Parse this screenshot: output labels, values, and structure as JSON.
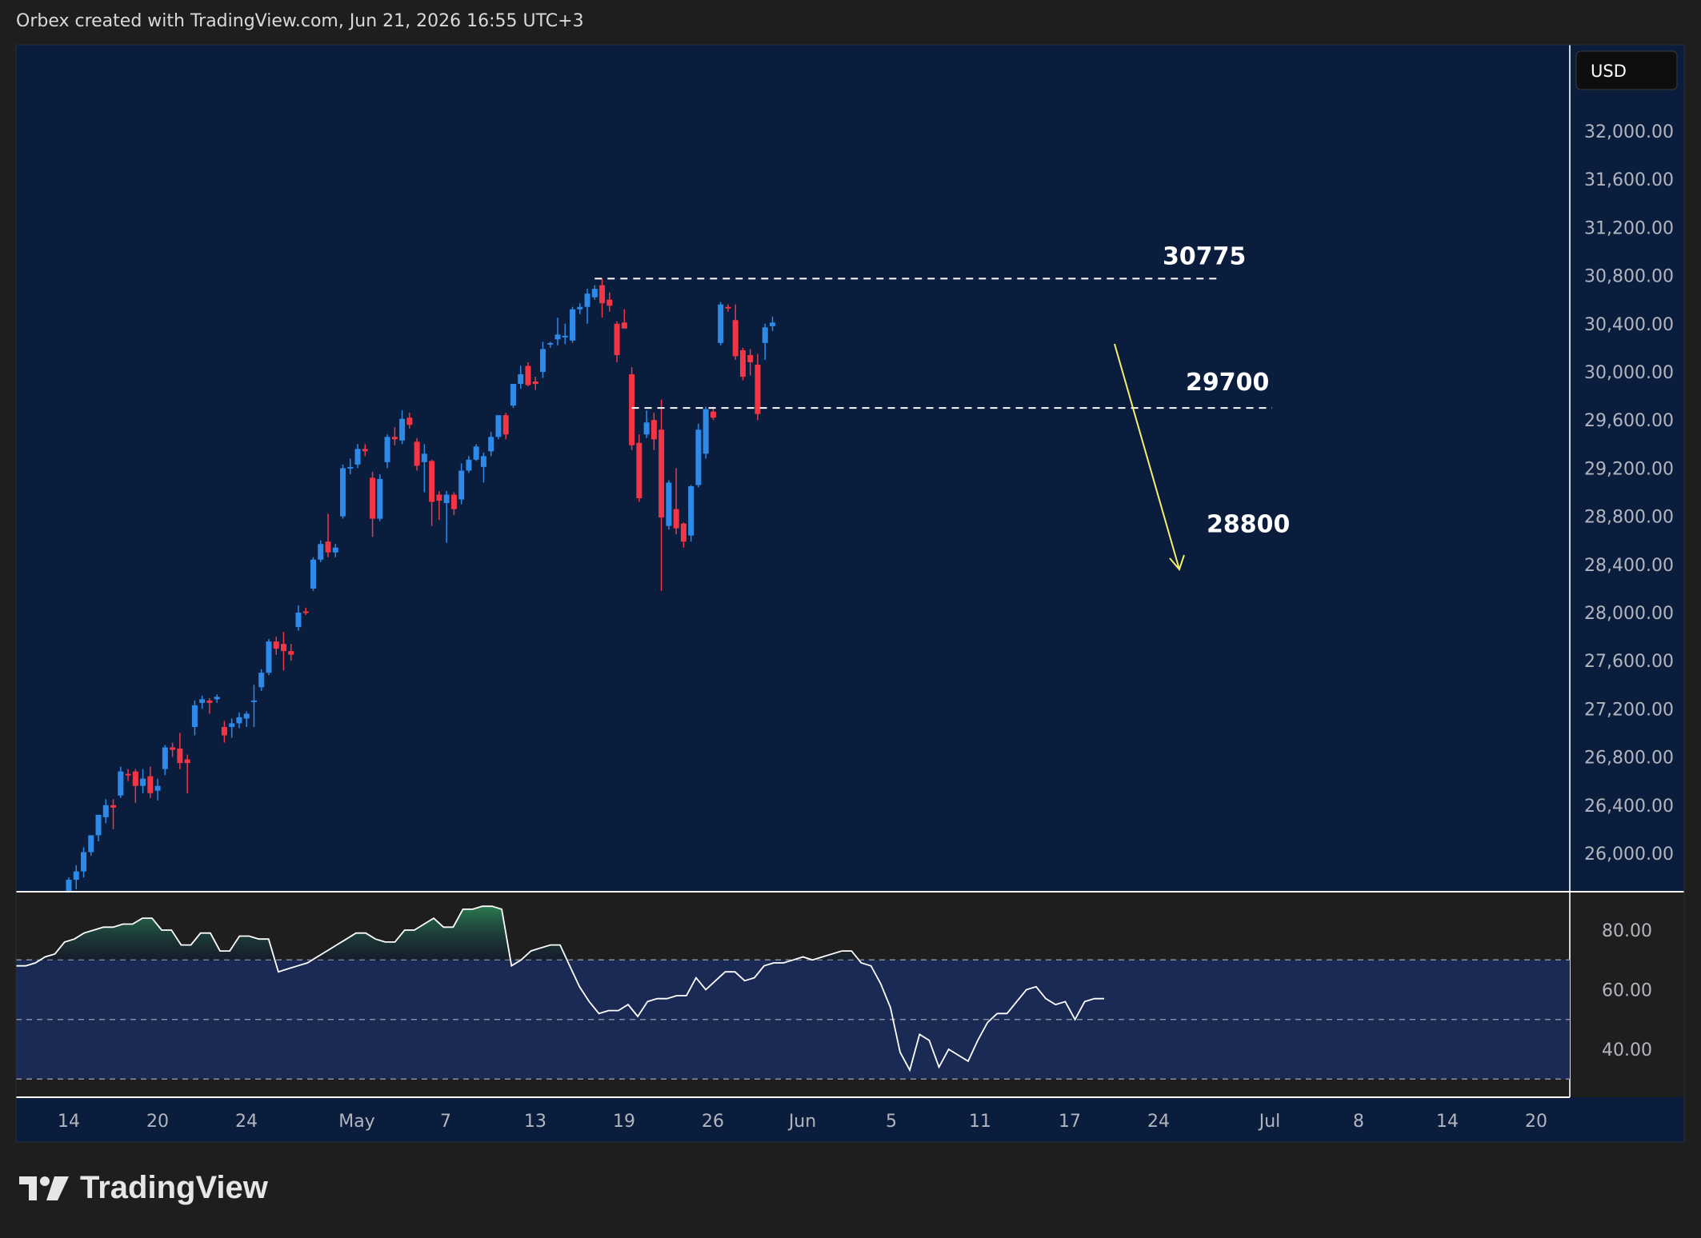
{
  "header": {
    "attribution": "Orbex created with TradingView.com, Jun 21, 2026 16:55 UTC+3"
  },
  "currency_button": {
    "label": "USD"
  },
  "brand": {
    "logo_text": "TradingView"
  },
  "colors": {
    "background": "#1e1e1e",
    "plot_bg": "#0b1d3d",
    "bull": "#2d8ae8",
    "bear": "#f23645",
    "rsi_line": "#ffffff",
    "rsi_band": "#1b2a55",
    "rsi_overbought_fill": "#1e5a3c",
    "arrow": "#f5f06a"
  },
  "chart_data": [
    {
      "type": "candlestick",
      "title": "",
      "ylim": [
        25600,
        32200
      ],
      "y_ticks": [
        26000,
        26400,
        26800,
        27200,
        27600,
        28000,
        28400,
        28800,
        29200,
        29600,
        30000,
        30400,
        30800,
        31200,
        31600,
        32000
      ],
      "y_tick_labels": [
        "26,000.00",
        "26,400.00",
        "26,800.00",
        "27,200.00",
        "27,600.00",
        "28,000.00",
        "28,400.00",
        "28,800.00",
        "29,200.00",
        "29,600.00",
        "30,000.00",
        "30,400.00",
        "30,800.00",
        "31,200.00",
        "31,600.00",
        "32,000.00"
      ],
      "x_tick_labels": [
        "14",
        "20",
        "24",
        "May",
        "7",
        "13",
        "19",
        "26",
        "Jun",
        "5",
        "11",
        "17",
        "24",
        "Jul",
        "8",
        "14",
        "20"
      ],
      "candles": [
        {
          "o": 25650,
          "h": 25800,
          "l": 25600,
          "c": 25780
        },
        {
          "o": 25780,
          "h": 25900,
          "l": 25700,
          "c": 25850
        },
        {
          "o": 25850,
          "h": 26050,
          "l": 25800,
          "c": 26010
        },
        {
          "o": 26010,
          "h": 26150,
          "l": 25980,
          "c": 26150
        },
        {
          "o": 26150,
          "h": 26300,
          "l": 26100,
          "c": 26320
        },
        {
          "o": 26300,
          "h": 26450,
          "l": 26250,
          "c": 26400
        },
        {
          "o": 26400,
          "h": 26450,
          "l": 26200,
          "c": 26380
        },
        {
          "o": 26480,
          "h": 26720,
          "l": 26460,
          "c": 26680
        },
        {
          "o": 26660,
          "h": 26700,
          "l": 26600,
          "c": 26650
        },
        {
          "o": 26680,
          "h": 26700,
          "l": 26420,
          "c": 26560
        },
        {
          "o": 26560,
          "h": 26700,
          "l": 26500,
          "c": 26620
        },
        {
          "o": 26640,
          "h": 26720,
          "l": 26460,
          "c": 26500
        },
        {
          "o": 26520,
          "h": 26620,
          "l": 26440,
          "c": 26560
        },
        {
          "o": 26700,
          "h": 26900,
          "l": 26650,
          "c": 26880
        },
        {
          "o": 26880,
          "h": 26920,
          "l": 26800,
          "c": 26860
        },
        {
          "o": 26870,
          "h": 27000,
          "l": 26700,
          "c": 26750
        },
        {
          "o": 26780,
          "h": 26820,
          "l": 26500,
          "c": 26750
        },
        {
          "o": 27050,
          "h": 27270,
          "l": 26980,
          "c": 27230
        },
        {
          "o": 27250,
          "h": 27310,
          "l": 27200,
          "c": 27280
        },
        {
          "o": 27270,
          "h": 27290,
          "l": 27160,
          "c": 27250
        },
        {
          "o": 27280,
          "h": 27320,
          "l": 27250,
          "c": 27300
        },
        {
          "o": 27050,
          "h": 27100,
          "l": 26920,
          "c": 26980
        },
        {
          "o": 27050,
          "h": 27120,
          "l": 26960,
          "c": 27080
        },
        {
          "o": 27080,
          "h": 27170,
          "l": 27040,
          "c": 27130
        },
        {
          "o": 27120,
          "h": 27180,
          "l": 27050,
          "c": 27160
        },
        {
          "o": 27260,
          "h": 27400,
          "l": 27050,
          "c": 27270
        },
        {
          "o": 27380,
          "h": 27530,
          "l": 27350,
          "c": 27500
        },
        {
          "o": 27500,
          "h": 27780,
          "l": 27480,
          "c": 27760
        },
        {
          "o": 27760,
          "h": 27800,
          "l": 27650,
          "c": 27700
        },
        {
          "o": 27740,
          "h": 27840,
          "l": 27520,
          "c": 27680
        },
        {
          "o": 27680,
          "h": 27740,
          "l": 27600,
          "c": 27650
        },
        {
          "o": 27880,
          "h": 28060,
          "l": 27850,
          "c": 28000
        },
        {
          "o": 28010,
          "h": 28040,
          "l": 27980,
          "c": 28000
        },
        {
          "o": 28200,
          "h": 28460,
          "l": 28180,
          "c": 28440
        },
        {
          "o": 28440,
          "h": 28600,
          "l": 28420,
          "c": 28570
        },
        {
          "o": 28590,
          "h": 28820,
          "l": 28460,
          "c": 28500
        },
        {
          "o": 28500,
          "h": 28570,
          "l": 28460,
          "c": 28540
        },
        {
          "o": 28800,
          "h": 29230,
          "l": 28780,
          "c": 29200
        },
        {
          "o": 29200,
          "h": 29280,
          "l": 29150,
          "c": 29210
        },
        {
          "o": 29230,
          "h": 29400,
          "l": 29200,
          "c": 29360
        },
        {
          "o": 29360,
          "h": 29400,
          "l": 29300,
          "c": 29340
        },
        {
          "o": 29120,
          "h": 29170,
          "l": 28630,
          "c": 28780
        },
        {
          "o": 28780,
          "h": 29150,
          "l": 28760,
          "c": 29110
        },
        {
          "o": 29250,
          "h": 29480,
          "l": 29200,
          "c": 29460
        },
        {
          "o": 29460,
          "h": 29540,
          "l": 29390,
          "c": 29440
        },
        {
          "o": 29430,
          "h": 29680,
          "l": 29400,
          "c": 29610
        },
        {
          "o": 29620,
          "h": 29660,
          "l": 29530,
          "c": 29560
        },
        {
          "o": 29420,
          "h": 29450,
          "l": 29180,
          "c": 29220
        },
        {
          "o": 29250,
          "h": 29400,
          "l": 29000,
          "c": 29320
        },
        {
          "o": 29260,
          "h": 29270,
          "l": 28720,
          "c": 28920
        },
        {
          "o": 28980,
          "h": 29010,
          "l": 28770,
          "c": 28930
        },
        {
          "o": 28910,
          "h": 29010,
          "l": 28580,
          "c": 28980
        },
        {
          "o": 28980,
          "h": 29000,
          "l": 28810,
          "c": 28860
        },
        {
          "o": 28940,
          "h": 29240,
          "l": 28900,
          "c": 29180
        },
        {
          "o": 29180,
          "h": 29300,
          "l": 29160,
          "c": 29270
        },
        {
          "o": 29270,
          "h": 29400,
          "l": 29260,
          "c": 29380
        },
        {
          "o": 29210,
          "h": 29330,
          "l": 29080,
          "c": 29300
        },
        {
          "o": 29340,
          "h": 29500,
          "l": 29300,
          "c": 29460
        },
        {
          "o": 29460,
          "h": 29620,
          "l": 29440,
          "c": 29640
        },
        {
          "o": 29640,
          "h": 29660,
          "l": 29440,
          "c": 29480
        },
        {
          "o": 29720,
          "h": 29900,
          "l": 29700,
          "c": 29900
        },
        {
          "o": 29900,
          "h": 30050,
          "l": 29860,
          "c": 29980
        },
        {
          "o": 30050,
          "h": 30080,
          "l": 29880,
          "c": 29890
        },
        {
          "o": 29920,
          "h": 29960,
          "l": 29850,
          "c": 29900
        },
        {
          "o": 30000,
          "h": 30250,
          "l": 29950,
          "c": 30190
        },
        {
          "o": 30230,
          "h": 30250,
          "l": 30200,
          "c": 30240
        },
        {
          "o": 30270,
          "h": 30450,
          "l": 30220,
          "c": 30310
        },
        {
          "o": 30290,
          "h": 30400,
          "l": 30230,
          "c": 30300
        },
        {
          "o": 30260,
          "h": 30540,
          "l": 30240,
          "c": 30520
        },
        {
          "o": 30520,
          "h": 30570,
          "l": 30480,
          "c": 30540
        },
        {
          "o": 30540,
          "h": 30690,
          "l": 30400,
          "c": 30650
        },
        {
          "o": 30620,
          "h": 30720,
          "l": 30600,
          "c": 30690
        },
        {
          "o": 30720,
          "h": 30775,
          "l": 30450,
          "c": 30570
        },
        {
          "o": 30600,
          "h": 30660,
          "l": 30500,
          "c": 30550
        },
        {
          "o": 30400,
          "h": 30420,
          "l": 30080,
          "c": 30140
        },
        {
          "o": 30410,
          "h": 30520,
          "l": 30380,
          "c": 30360
        },
        {
          "o": 29980,
          "h": 30040,
          "l": 29350,
          "c": 29390
        },
        {
          "o": 29410,
          "h": 29480,
          "l": 28920,
          "c": 28950
        },
        {
          "o": 29480,
          "h": 29680,
          "l": 29450,
          "c": 29580
        },
        {
          "o": 29600,
          "h": 29660,
          "l": 29350,
          "c": 29440
        },
        {
          "o": 29520,
          "h": 29770,
          "l": 28180,
          "c": 28790
        },
        {
          "o": 28720,
          "h": 29100,
          "l": 28690,
          "c": 29080
        },
        {
          "o": 28860,
          "h": 29200,
          "l": 28650,
          "c": 28700
        },
        {
          "o": 28740,
          "h": 28750,
          "l": 28540,
          "c": 28590
        },
        {
          "o": 28640,
          "h": 29060,
          "l": 28590,
          "c": 29050
        },
        {
          "o": 29060,
          "h": 29570,
          "l": 29040,
          "c": 29520
        },
        {
          "o": 29320,
          "h": 29710,
          "l": 29280,
          "c": 29690
        },
        {
          "o": 29670,
          "h": 29710,
          "l": 29600,
          "c": 29620
        },
        {
          "o": 30240,
          "h": 30580,
          "l": 30220,
          "c": 30560
        },
        {
          "o": 30540,
          "h": 30560,
          "l": 30500,
          "c": 30530
        },
        {
          "o": 30430,
          "h": 30560,
          "l": 30100,
          "c": 30130
        },
        {
          "o": 30180,
          "h": 30200,
          "l": 29930,
          "c": 29960
        },
        {
          "o": 30140,
          "h": 30190,
          "l": 29970,
          "c": 30080
        },
        {
          "o": 30060,
          "h": 30150,
          "l": 29600,
          "c": 29650
        },
        {
          "o": 30240,
          "h": 30400,
          "l": 30100,
          "c": 30370
        },
        {
          "o": 30380,
          "h": 30460,
          "l": 30340,
          "c": 30410
        }
      ],
      "annotations": [
        {
          "label": "30775",
          "price": 30775
        },
        {
          "label": "29700",
          "price": 29700
        },
        {
          "label": "28800",
          "price": 28800
        }
      ]
    },
    {
      "type": "line",
      "title": "",
      "ylim": [
        28,
        92
      ],
      "y_ticks": [
        40,
        60,
        80
      ],
      "y_tick_labels": [
        "40.00",
        "60.00",
        "80.00"
      ],
      "levels": [
        30,
        50,
        70
      ],
      "values": [
        68,
        68,
        69,
        71,
        72,
        76,
        77,
        79,
        80,
        81,
        81,
        82,
        82,
        84,
        84,
        80,
        80,
        75,
        75,
        79,
        79,
        73,
        73,
        78,
        78,
        77,
        77,
        66,
        67,
        68,
        69,
        71,
        73,
        75,
        77,
        79,
        79,
        77,
        76,
        76,
        80,
        80,
        82,
        84,
        81,
        81,
        87,
        87,
        88,
        88,
        87,
        68,
        70,
        73,
        74,
        75,
        75,
        68,
        61,
        56,
        52,
        53,
        53,
        55,
        51,
        56,
        57,
        57,
        58,
        58,
        64,
        60,
        63,
        66,
        66,
        63,
        64,
        68,
        69,
        69,
        70,
        71,
        70,
        71,
        72,
        73,
        73,
        69,
        68,
        62,
        54,
        39,
        33,
        45,
        43,
        34,
        40,
        38,
        36,
        43,
        49,
        52,
        52,
        56,
        60,
        61,
        57,
        55,
        56,
        50,
        56,
        57,
        57
      ]
    }
  ]
}
